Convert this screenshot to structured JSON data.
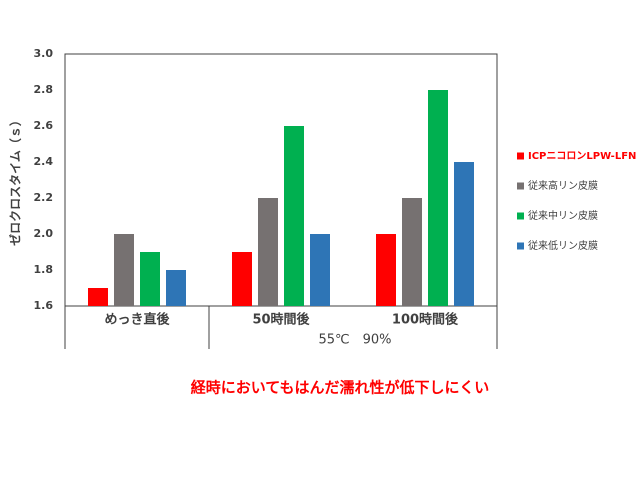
{
  "chart_data": {
    "type": "bar",
    "y_label": "ゼロクロスタイム（ｓ）",
    "subtitle": "55℃　90%",
    "annotation": "経時においてもはんだ濡れ性が低下しにくい",
    "categories": [
      "めっき直後",
      "50時間後",
      "100時間後"
    ],
    "series": [
      {
        "name": "ICPニコロンLPW-LFN",
        "color": "#ff0000",
        "values": [
          1.7,
          1.9,
          2.0
        ]
      },
      {
        "name": "従来高リン皮膜",
        "color": "#767171",
        "values": [
          2.0,
          2.2,
          2.2
        ]
      },
      {
        "name": "従来中リン皮膜",
        "color": "#00b050",
        "values": [
          1.9,
          2.6,
          2.8
        ]
      },
      {
        "name": "従来低リン皮膜",
        "color": "#2e75b6",
        "values": [
          1.8,
          2.0,
          2.4
        ]
      }
    ],
    "ylim": [
      1.6,
      3.0
    ],
    "yticks": [
      1.6,
      1.8,
      {
        "value": 2.0,
        "label": "2.0"
      },
      2.2,
      2.4,
      2.6,
      2.8,
      {
        "value": 3.0,
        "label": "3.0"
      }
    ],
    "grid": false,
    "legend": "right"
  }
}
